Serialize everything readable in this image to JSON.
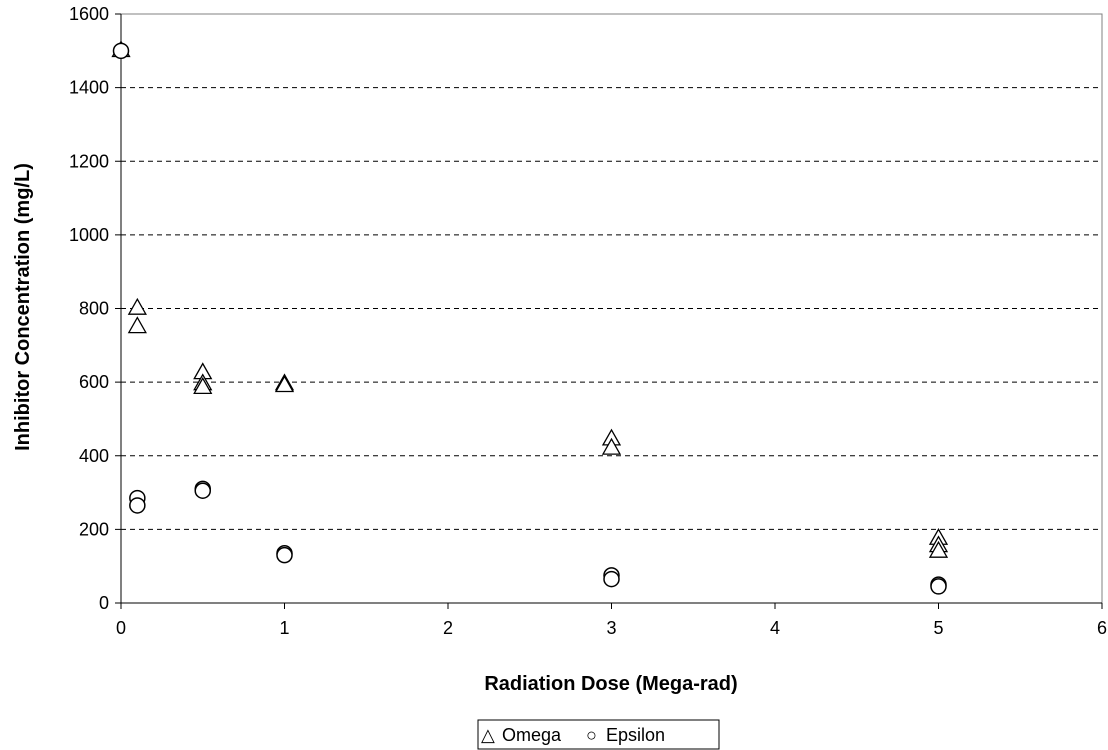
{
  "chart_data": {
    "type": "scatter",
    "title": "",
    "xlabel": "Radiation Dose (Mega-rad)",
    "ylabel": "Inhibitor Concentration (mg/L)",
    "xlim": [
      0,
      6
    ],
    "ylim": [
      0,
      1600
    ],
    "xticks": [
      0,
      1,
      2,
      3,
      4,
      5,
      6
    ],
    "yticks": [
      0,
      200,
      400,
      600,
      800,
      1000,
      1200,
      1400,
      1600
    ],
    "grid": "horizontal dashed",
    "legend_position": "bottom-center",
    "series": [
      {
        "name": "Omega",
        "marker": "triangle",
        "points": [
          {
            "x": 0,
            "y": 1500
          },
          {
            "x": 0.1,
            "y": 800
          },
          {
            "x": 0.1,
            "y": 750
          },
          {
            "x": 0.5,
            "y": 625
          },
          {
            "x": 0.5,
            "y": 595
          },
          {
            "x": 0.5,
            "y": 585
          },
          {
            "x": 1,
            "y": 595
          },
          {
            "x": 1,
            "y": 590
          },
          {
            "x": 3,
            "y": 445
          },
          {
            "x": 3,
            "y": 420
          },
          {
            "x": 5,
            "y": 175
          },
          {
            "x": 5,
            "y": 155
          },
          {
            "x": 5,
            "y": 140
          }
        ]
      },
      {
        "name": "Epsilon",
        "marker": "circle",
        "points": [
          {
            "x": 0,
            "y": 1500
          },
          {
            "x": 0.1,
            "y": 285
          },
          {
            "x": 0.1,
            "y": 265
          },
          {
            "x": 0.5,
            "y": 310
          },
          {
            "x": 0.5,
            "y": 305
          },
          {
            "x": 1,
            "y": 135
          },
          {
            "x": 1,
            "y": 130
          },
          {
            "x": 3,
            "y": 75
          },
          {
            "x": 3,
            "y": 65
          },
          {
            "x": 5,
            "y": 50
          },
          {
            "x": 5,
            "y": 45
          }
        ]
      }
    ]
  },
  "legend": {
    "items": [
      {
        "label": "Omega",
        "symbol": "△"
      },
      {
        "label": "Epsilon",
        "symbol": "○"
      }
    ]
  },
  "colors": {
    "marker_stroke": "#000000",
    "marker_fill": "#ffffff",
    "grid": "#000000",
    "axis": "#808080"
  }
}
